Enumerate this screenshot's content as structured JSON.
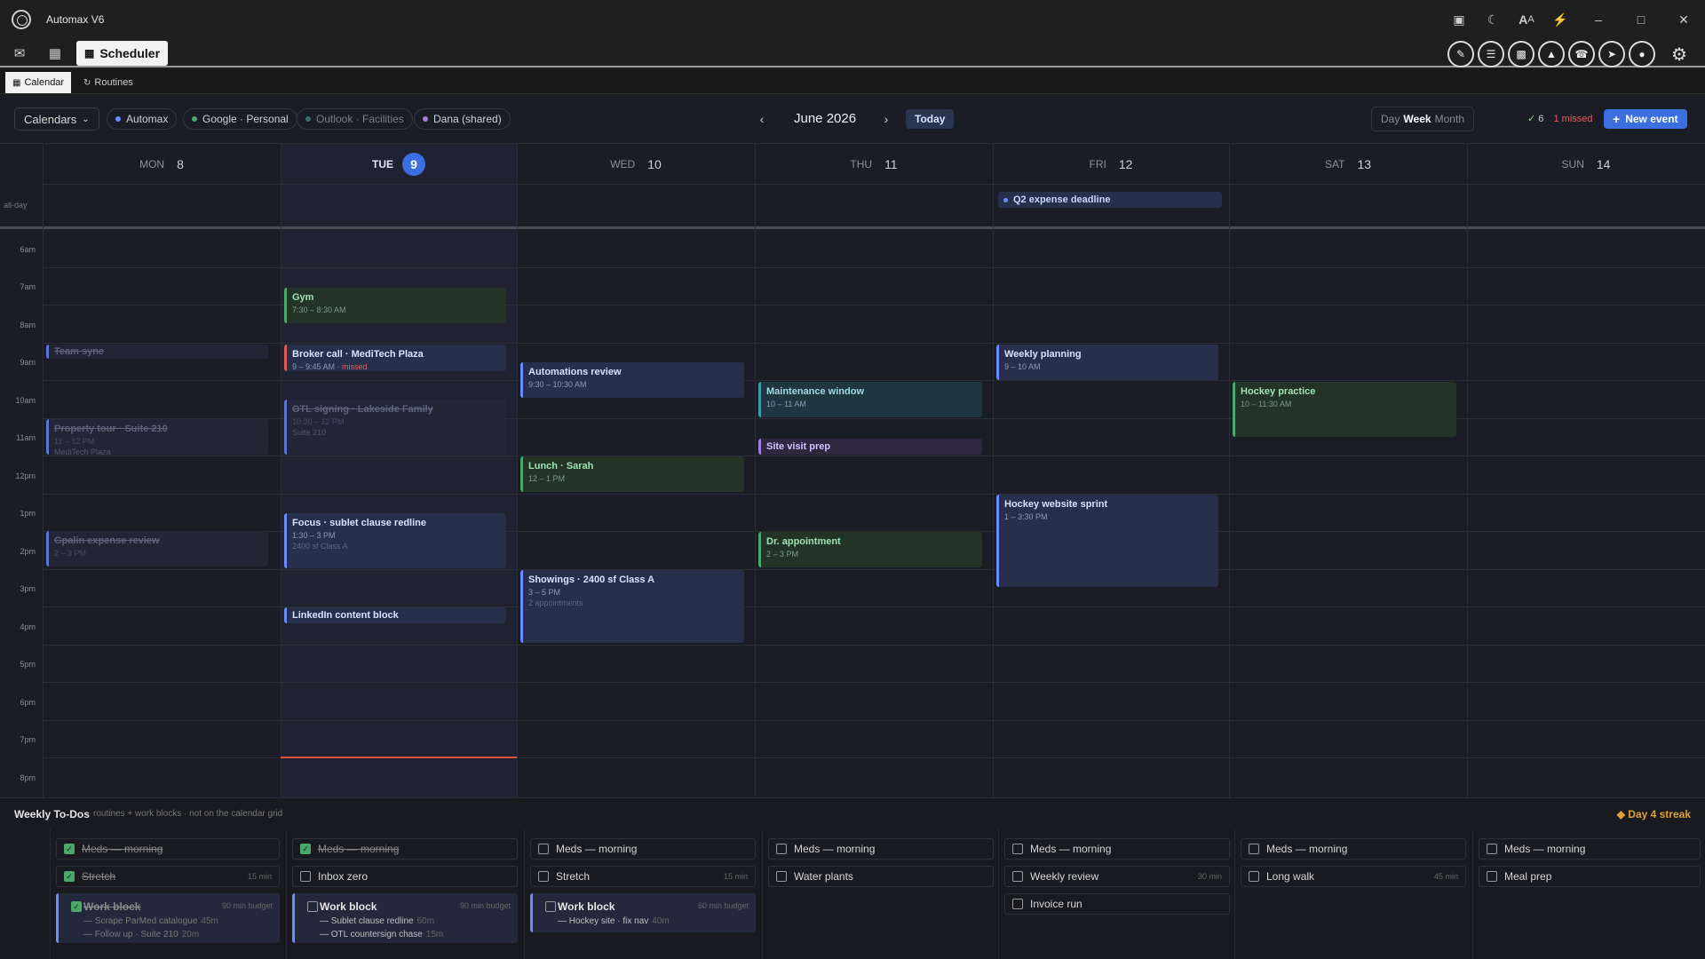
{
  "app": {
    "title": "Automax V6"
  },
  "toolbar": {
    "scheduler_label": "Scheduler"
  },
  "tabs": [
    {
      "label": "Calendar"
    },
    {
      "label": "Routines"
    }
  ],
  "filters": {
    "calendars_label": "Calendars",
    "chips": [
      {
        "label": "Automax",
        "color": "#6a8cff"
      },
      {
        "label": "Google · Personal",
        "color": "#4aa86a"
      },
      {
        "label": "Outlook · Facilities",
        "color": "#3aa0a8"
      },
      {
        "label": "Dana (shared)",
        "color": "#a47be0"
      }
    ]
  },
  "nav": {
    "month": "June 2026",
    "today": "Today"
  },
  "views": {
    "day": "Day",
    "week": "Week",
    "month": "Month",
    "selected": "Week"
  },
  "stats": {
    "done": "6",
    "missed_count": "1",
    "missed_label": "missed"
  },
  "new_event": "New event",
  "days": [
    {
      "dow": "MON",
      "num": "8"
    },
    {
      "dow": "TUE",
      "num": "9",
      "today": true
    },
    {
      "dow": "WED",
      "num": "10"
    },
    {
      "dow": "THU",
      "num": "11"
    },
    {
      "dow": "FRI",
      "num": "12"
    },
    {
      "dow": "SAT",
      "num": "13"
    },
    {
      "dow": "SUN",
      "num": "14"
    }
  ],
  "allday_label": "all-day",
  "allday_event": "Q2 expense deadline",
  "hours": [
    "6am",
    "7am",
    "8am",
    "9am",
    "10am",
    "11am",
    "12pm",
    "1pm",
    "2pm",
    "3pm",
    "4pm",
    "5pm",
    "6pm",
    "7pm",
    "8pm"
  ],
  "events": [
    {
      "title": "Team sync"
    },
    {
      "title": "Property tour · Suite 210",
      "time": "11 – 12 PM",
      "extra": "MediTech Plaza"
    },
    {
      "title": "Gpalin expense review",
      "time": "2 – 3 PM"
    },
    {
      "title": "Gym",
      "time": "7:30 – 8:30 AM"
    },
    {
      "title": "Broker call · MediTech Plaza",
      "time": "9 – 9:45 AM",
      "missed": "· missed"
    },
    {
      "title": "OTL signing · Lakeside Family",
      "time": "10:30 – 12 PM",
      "extra": "Suite 210"
    },
    {
      "title": "Focus · sublet clause redline",
      "time": "1:30 – 3 PM",
      "extra": "2400 sf Class A"
    },
    {
      "title": "LinkedIn content block"
    },
    {
      "title": "Automations review",
      "time": "9:30 – 10:30 AM"
    },
    {
      "title": "Lunch · Sarah",
      "time": "12 – 1 PM"
    },
    {
      "title": "Showings · 2400 sf Class A",
      "time": "3 – 5 PM",
      "extra": "2 appointments"
    },
    {
      "title": "Maintenance window",
      "time": "10 – 11 AM"
    },
    {
      "title": "Site visit prep"
    },
    {
      "title": "Dr. appointment",
      "time": "2 – 3 PM"
    },
    {
      "title": "Weekly planning",
      "time": "9 – 10 AM"
    },
    {
      "title": "Hockey website sprint",
      "time": "1 – 3:30 PM"
    },
    {
      "title": "Hockey practice",
      "time": "10 – 11:30 AM"
    }
  ],
  "todos": {
    "title": "Weekly To-Dos",
    "subtitle": "routines + work blocks · not on the calendar grid",
    "streak": "Day 4 streak",
    "meds": "Meds — morning",
    "stretch": "Stretch",
    "inbox": "Inbox zero",
    "water": "Water plants",
    "weekly_review": "Weekly review",
    "invoice": "Invoice run",
    "long_walk": "Long walk",
    "meal_prep": "Meal prep",
    "m15": "15 min",
    "m30": "30 min",
    "m45": "45 min",
    "work_block": "Work block",
    "b90": "90 min budget",
    "b60": "60 min budget",
    "mon_subs": [
      {
        "t": "— Scrape ParMed catalogue",
        "m": "45m"
      },
      {
        "t": "— Follow up · Suite 210",
        "m": "20m"
      }
    ],
    "tue_subs": [
      {
        "t": "— Sublet clause redline",
        "m": "60m"
      },
      {
        "t": "— OTL countersign chase",
        "m": "15m"
      }
    ],
    "wed_subs": [
      {
        "t": "— Hockey site · fix nav",
        "m": "40m"
      }
    ]
  }
}
